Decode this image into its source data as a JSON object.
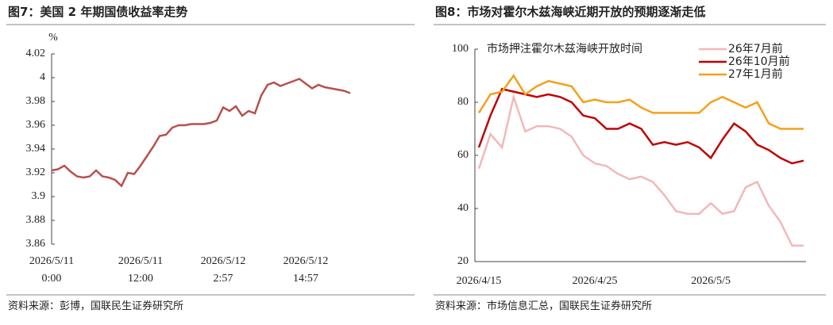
{
  "chart_data": [
    {
      "type": "line",
      "title": "图7：美国 2 年期国债收益率走势",
      "y_unit": "%",
      "color": "#b8504a",
      "categories": [
        "2026/5/11\n0:00",
        null,
        null,
        null,
        null,
        null,
        null,
        null,
        null,
        null,
        null,
        null,
        null,
        null,
        "2026/5/11\n12:00",
        null,
        null,
        null,
        null,
        null,
        null,
        null,
        null,
        null,
        null,
        null,
        null,
        "2026/5/12\n2:57",
        null,
        null,
        null,
        null,
        null,
        null,
        null,
        null,
        null,
        null,
        null,
        null,
        "2026/5/12\n14:57",
        null,
        null,
        null,
        null,
        null,
        null,
        null
      ],
      "values": [
        3.922,
        3.923,
        3.926,
        3.921,
        3.917,
        3.916,
        3.917,
        3.922,
        3.917,
        3.916,
        3.914,
        3.909,
        3.92,
        3.919,
        3.926,
        3.934,
        3.942,
        3.951,
        3.952,
        3.958,
        3.96,
        3.96,
        3.961,
        3.961,
        3.961,
        3.962,
        3.964,
        3.975,
        3.972,
        3.976,
        3.968,
        3.972,
        3.97,
        3.985,
        3.994,
        3.996,
        3.993,
        3.995,
        3.997,
        3.999,
        3.995,
        3.991,
        3.994,
        3.992,
        3.991,
        3.99,
        3.989,
        3.987
      ],
      "ylim": [
        3.86,
        4.02
      ],
      "yticks": [
        3.86,
        3.88,
        3.9,
        3.92,
        3.94,
        3.96,
        3.98,
        4,
        4.02
      ],
      "grid": false,
      "source": "资料来源：彭博，国联民生证券研究所"
    },
    {
      "type": "line",
      "title": "图8：市场对霍尔木兹海峡近期开放的预期逐渐走低",
      "annotation": "市场押注霍尔木兹海峡开放时间",
      "categories": [
        "2026/4/15",
        null,
        null,
        null,
        null,
        null,
        null,
        null,
        null,
        null,
        "2026/4/25",
        null,
        null,
        null,
        null,
        null,
        null,
        null,
        null,
        null,
        "2026/5/5",
        null,
        null,
        null,
        null,
        null,
        null,
        null,
        null
      ],
      "series": [
        {
          "name": "26年7月前",
          "color": "#f2b8b8",
          "values": [
            55,
            68,
            63,
            82,
            69,
            71,
            71,
            70,
            67,
            60,
            57,
            56,
            53,
            51,
            52,
            50,
            45,
            39,
            38,
            38,
            42,
            38,
            39,
            48,
            50,
            41,
            35,
            26,
            26
          ]
        },
        {
          "name": "26年10月前",
          "color": "#c00000",
          "values": [
            63,
            75,
            85,
            84,
            83,
            82,
            83,
            82,
            80,
            75,
            74,
            70,
            70,
            72,
            70,
            64,
            65,
            64,
            65,
            63,
            59,
            66,
            72,
            69,
            64,
            62,
            59,
            57,
            58
          ]
        },
        {
          "name": "27年1月前",
          "color": "#f5a01a",
          "values": [
            76,
            83,
            84,
            90,
            83,
            86,
            88,
            87,
            86,
            80,
            81,
            80,
            80,
            81,
            78,
            76,
            76,
            76,
            76,
            76,
            80,
            82,
            80,
            78,
            80,
            72,
            70,
            70,
            70
          ]
        }
      ],
      "ylim": [
        20,
        100
      ],
      "yticks": [
        20,
        40,
        60,
        80,
        100
      ],
      "grid": false,
      "legend": "top-right",
      "source": "资料来源：市场信息汇总，国联民生证券研究所"
    }
  ]
}
